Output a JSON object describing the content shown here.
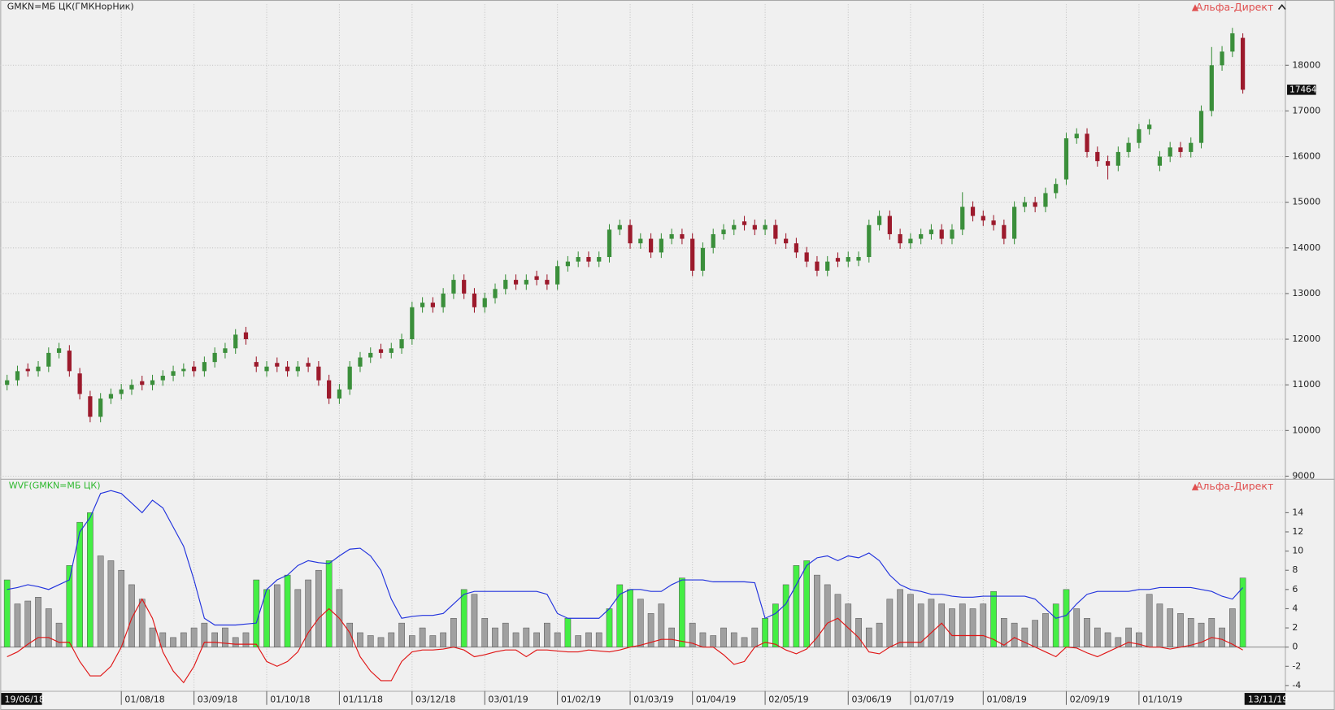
{
  "chart_data": [
    {
      "type": "candlestick",
      "title": "GMKN=МБ ЦК(ГМКНорНик)",
      "brand": "Альфа-Директ",
      "categories": [
        "19/06/18",
        null,
        null,
        null,
        null,
        null,
        null,
        null,
        null,
        null,
        null,
        "01/08/18",
        null,
        null,
        null,
        null,
        null,
        null,
        "03/09/18",
        null,
        null,
        null,
        null,
        null,
        null,
        "01/10/18",
        null,
        null,
        null,
        null,
        null,
        null,
        "01/11/18",
        null,
        null,
        null,
        null,
        null,
        null,
        "03/12/18",
        null,
        null,
        null,
        null,
        null,
        null,
        "03/01/19",
        null,
        null,
        null,
        null,
        null,
        null,
        "01/02/19",
        null,
        null,
        null,
        null,
        null,
        null,
        "01/03/19",
        null,
        null,
        null,
        null,
        null,
        "01/04/19",
        null,
        null,
        null,
        null,
        null,
        null,
        "02/05/19",
        null,
        null,
        null,
        null,
        null,
        null,
        null,
        "03/06/19",
        null,
        null,
        null,
        null,
        null,
        "01/07/19",
        null,
        null,
        null,
        null,
        null,
        null,
        "01/08/19",
        null,
        null,
        null,
        null,
        null,
        null,
        null,
        "02/09/19",
        null,
        null,
        null,
        null,
        null,
        null,
        "01/10/19",
        null,
        null,
        null,
        null,
        null,
        null,
        null,
        null,
        null,
        "13/11/19"
      ],
      "open": [
        11000,
        11100,
        11350,
        11300,
        11400,
        11700,
        11750,
        11250,
        10750,
        10300,
        10700,
        10800,
        10900,
        11080,
        11000,
        11100,
        11200,
        11300,
        11400,
        11300,
        11500,
        11700,
        11800,
        12150,
        11500,
        11300,
        11480,
        11400,
        11300,
        11480,
        11400,
        11100,
        10700,
        10900,
        11400,
        11600,
        11780,
        11700,
        11800,
        12000,
        12700,
        12800,
        12700,
        13000,
        13300,
        13000,
        12700,
        12900,
        13100,
        13300,
        13200,
        13380,
        13300,
        13200,
        13600,
        13700,
        13800,
        13700,
        13800,
        14400,
        14500,
        14100,
        14200,
        13900,
        14200,
        14300,
        14200,
        13500,
        14000,
        14300,
        14400,
        14580,
        14500,
        14400,
        14500,
        14200,
        14100,
        13900,
        13700,
        13500,
        13780,
        13700,
        13720,
        13800,
        14500,
        14700,
        14300,
        14100,
        14200,
        14300,
        14400,
        14200,
        14400,
        14900,
        14700,
        14600,
        14500,
        14200,
        14900,
        15000,
        14900,
        15200,
        15500,
        16400,
        16500,
        16100,
        15900,
        15800,
        16100,
        16300,
        16600,
        15800,
        16000,
        16200,
        16100,
        16300,
        17000,
        18000,
        18300,
        18600
      ],
      "high": [
        11220,
        11420,
        11470,
        11520,
        11820,
        11920,
        11870,
        11370,
        10870,
        10820,
        10920,
        11020,
        11120,
        11200,
        11220,
        11320,
        11420,
        11470,
        11520,
        11620,
        11820,
        11920,
        12220,
        12270,
        11620,
        11520,
        11600,
        11520,
        11520,
        11600,
        11520,
        11220,
        11020,
        11520,
        11720,
        11820,
        11900,
        11920,
        12120,
        12820,
        12920,
        12920,
        13120,
        13420,
        13420,
        13120,
        13020,
        13220,
        13420,
        13420,
        13420,
        13500,
        13420,
        13720,
        13820,
        13920,
        13920,
        13920,
        14520,
        14620,
        14620,
        14320,
        14320,
        14320,
        14420,
        14420,
        14320,
        14120,
        14420,
        14520,
        14620,
        14700,
        14620,
        14620,
        14620,
        14320,
        14220,
        14020,
        13820,
        13820,
        13900,
        13920,
        13920,
        14620,
        14820,
        14820,
        14420,
        14320,
        14420,
        14520,
        14520,
        14520,
        15220,
        15020,
        14820,
        14720,
        14620,
        15020,
        15120,
        15120,
        15320,
        15520,
        16520,
        16620,
        16620,
        16220,
        16020,
        16220,
        16420,
        16720,
        16820,
        16120,
        16320,
        16320,
        16420,
        17120,
        18400,
        18420,
        18820,
        18700
      ],
      "low": [
        10880,
        10980,
        11180,
        11180,
        11280,
        11580,
        11180,
        10680,
        10180,
        10180,
        10580,
        10680,
        10780,
        10880,
        10880,
        10980,
        11080,
        11180,
        11180,
        11180,
        11380,
        11580,
        11680,
        11880,
        11280,
        11180,
        11280,
        11180,
        11180,
        11280,
        10980,
        10580,
        10580,
        10780,
        11280,
        11480,
        11580,
        11580,
        11680,
        11880,
        12580,
        12580,
        12580,
        12880,
        12880,
        12580,
        12580,
        12780,
        12980,
        13080,
        13080,
        13180,
        13080,
        13080,
        13480,
        13580,
        13580,
        13580,
        13680,
        14280,
        13980,
        13980,
        13780,
        13780,
        14080,
        14080,
        13380,
        13380,
        13880,
        14180,
        14280,
        14380,
        14280,
        14280,
        14080,
        13980,
        13780,
        13580,
        13380,
        13380,
        13580,
        13580,
        13600,
        13680,
        14380,
        14180,
        13980,
        13980,
        14080,
        14180,
        14080,
        14080,
        14280,
        14580,
        14480,
        14380,
        14080,
        14080,
        14780,
        14780,
        14780,
        15080,
        15380,
        16280,
        15980,
        15780,
        15500,
        15680,
        15980,
        16180,
        16480,
        15680,
        15880,
        15980,
        15980,
        16180,
        16880,
        17880,
        18180,
        17380
      ],
      "close": [
        11100,
        11300,
        11300,
        11400,
        11700,
        11800,
        11300,
        10800,
        10300,
        10700,
        10800,
        10900,
        11000,
        11000,
        11100,
        11200,
        11300,
        11350,
        11300,
        11500,
        11700,
        11800,
        12100,
        12000,
        11400,
        11400,
        11400,
        11300,
        11400,
        11400,
        11100,
        10700,
        10900,
        11400,
        11600,
        11700,
        11700,
        11800,
        12000,
        12700,
        12800,
        12700,
        13000,
        13300,
        13000,
        12700,
        12900,
        13100,
        13300,
        13200,
        13300,
        13300,
        13200,
        13600,
        13700,
        13800,
        13700,
        13800,
        14400,
        14500,
        14100,
        14200,
        13900,
        14200,
        14300,
        14200,
        13500,
        14000,
        14300,
        14400,
        14500,
        14500,
        14400,
        14500,
        14200,
        14100,
        13900,
        13700,
        13500,
        13700,
        13700,
        13800,
        13800,
        14500,
        14700,
        14300,
        14100,
        14200,
        14300,
        14400,
        14200,
        14400,
        14900,
        14700,
        14600,
        14500,
        14200,
        14900,
        15000,
        14900,
        15200,
        15400,
        16400,
        16500,
        16100,
        15900,
        15800,
        16100,
        16300,
        16600,
        16700,
        16000,
        16200,
        16100,
        16300,
        17000,
        18000,
        18300,
        18700,
        17464
      ],
      "up_color": "#3b8f3b",
      "down_color": "#9c1a2c",
      "ylim": [
        8950,
        19150
      ],
      "yticks": [
        9000,
        10000,
        11000,
        12000,
        13000,
        14000,
        15000,
        16000,
        17000,
        18000
      ],
      "grid": true
    },
    {
      "type": "wvf",
      "title": "WVF(GMKN=МБ ЦК)",
      "brand": "Альфа-Директ",
      "values": [
        7,
        4.5,
        4.8,
        5.2,
        4,
        2.5,
        8.5,
        13,
        14,
        9.5,
        9,
        8,
        6.5,
        5,
        2,
        1.5,
        1,
        1.5,
        2,
        2.5,
        1.5,
        2,
        1,
        1.5,
        7,
        6,
        6.5,
        7.5,
        6,
        7,
        8,
        9,
        6,
        2.5,
        1.5,
        1.2,
        1,
        1.5,
        2.5,
        1.2,
        2,
        1.2,
        1.5,
        3,
        6,
        5.5,
        3,
        2,
        2.5,
        1.5,
        2,
        1.5,
        2.5,
        1.5,
        3,
        1.2,
        1.5,
        1.5,
        4,
        6.5,
        6,
        5,
        3.5,
        4.5,
        2,
        7.2,
        2.5,
        1.5,
        1.2,
        2,
        1.5,
        1,
        2,
        3,
        4.5,
        6.5,
        8.5,
        9,
        7.5,
        6.5,
        5.5,
        4.5,
        3,
        2,
        2.5,
        5,
        6,
        5.5,
        4.5,
        5,
        4.5,
        4,
        4.5,
        4,
        4.5,
        5.8,
        3,
        2.5,
        2,
        2.8,
        3.5,
        4.5,
        6,
        4,
        3,
        2,
        1.5,
        1,
        2,
        1.5,
        5.5,
        4.5,
        4,
        3.5,
        3,
        2.5,
        3,
        2,
        4,
        7.2
      ],
      "color": "#a0a0a0",
      "highlight_color": "#44ee44",
      "upper": {
        "color": "#2233dd",
        "values": [
          6,
          6.2,
          6.5,
          6.3,
          6,
          6.5,
          7,
          12,
          13.5,
          16,
          16.3,
          16,
          15,
          14,
          15.3,
          14.5,
          12.5,
          10.5,
          7,
          3,
          2.3,
          2.3,
          2.3,
          2.4,
          2.5,
          6,
          7,
          7.5,
          8.5,
          9,
          8.8,
          8.7,
          9.5,
          10.2,
          10.3,
          9.5,
          8,
          5,
          3,
          3.2,
          3.3,
          3.3,
          3.5,
          4.5,
          5.5,
          5.8,
          5.8,
          5.8,
          5.8,
          5.8,
          5.8,
          5.8,
          5.5,
          3.5,
          3,
          3,
          3,
          3,
          4,
          5.5,
          6,
          6,
          5.8,
          5.8,
          6.5,
          7,
          7,
          7,
          6.8,
          6.8,
          6.8,
          6.8,
          6.7,
          3,
          3.5,
          4.5,
          6.5,
          8.5,
          9.3,
          9.5,
          9,
          9.5,
          9.3,
          9.8,
          9,
          7.5,
          6.5,
          6,
          5.8,
          5.5,
          5.5,
          5.3,
          5.2,
          5.2,
          5.3,
          5.3,
          5.3,
          5.3,
          5.3,
          5,
          4,
          3,
          3.3,
          4.5,
          5.5,
          5.8,
          5.8,
          5.8,
          5.8,
          6,
          6,
          6.2,
          6.2,
          6.2,
          6.2,
          6,
          5.8,
          5.3,
          5,
          6.2
        ]
      },
      "lower": {
        "color": "#e01515",
        "values": [
          -1,
          -0.5,
          0.3,
          1,
          1,
          0.5,
          0.5,
          -1.5,
          -3,
          -3,
          -2,
          0,
          3,
          5,
          3,
          -0.5,
          -2.5,
          -3.7,
          -2,
          0.5,
          0.5,
          0.4,
          0.3,
          0.3,
          0.3,
          -1.5,
          -2,
          -1.5,
          -0.5,
          1.5,
          3,
          4,
          3,
          1.5,
          -1,
          -2.5,
          -3.5,
          -3.5,
          -1.5,
          -0.5,
          -0.3,
          -0.3,
          -0.2,
          0,
          -0.3,
          -1,
          -0.8,
          -0.5,
          -0.3,
          -0.3,
          -1,
          -0.3,
          -0.3,
          -0.4,
          -0.5,
          -0.5,
          -0.3,
          -0.4,
          -0.5,
          -0.3,
          0,
          0.2,
          0.5,
          0.8,
          0.8,
          0.6,
          0.4,
          0,
          0,
          -0.8,
          -1.8,
          -1.5,
          0,
          0.5,
          0.3,
          -0.3,
          -0.7,
          -0.2,
          1,
          2.5,
          3,
          2,
          1,
          -0.5,
          -0.7,
          0,
          0.5,
          0.5,
          0.5,
          1.5,
          2.5,
          1.2,
          1.2,
          1.2,
          1.2,
          0.8,
          0.2,
          1,
          0.5,
          0,
          -0.5,
          -1,
          0,
          -0.1,
          -0.6,
          -1,
          -0.5,
          0,
          0.5,
          0.3,
          0,
          0,
          -0.2,
          0,
          0.2,
          0.5,
          1,
          0.8,
          0.3,
          -0.3
        ]
      },
      "ylim": [
        -4.6,
        17.3
      ],
      "yticks": [
        -4,
        -2,
        0,
        2,
        4,
        6,
        8,
        10,
        12,
        14
      ],
      "grid": false
    }
  ]
}
